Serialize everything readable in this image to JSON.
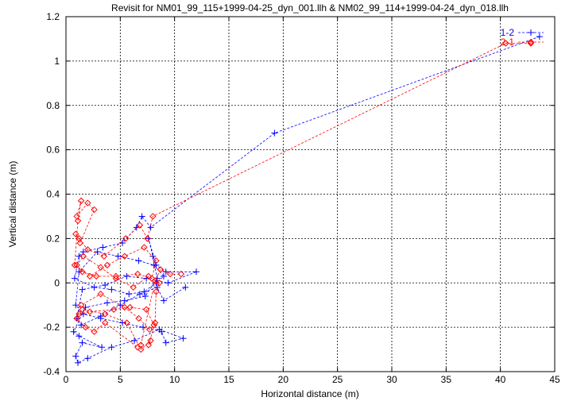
{
  "chart_data": {
    "type": "scatter",
    "title": "Revisit for NM01_99_115+1999-04-25_dyn_001.llh & NM02_99_114+1999-04-24_dyn_018.llh",
    "xlabel": "Horizontal distance (m)",
    "ylabel": "Vertical distance (m)",
    "xlim": [
      0,
      45
    ],
    "ylim": [
      -0.4,
      1.2
    ],
    "xticks": [
      0,
      5,
      10,
      15,
      20,
      25,
      30,
      35,
      40,
      45
    ],
    "yticks": [
      -0.4,
      -0.2,
      0,
      0.2,
      0.4,
      0.6,
      0.8,
      1,
      1.2
    ],
    "xtick_labels": [
      "0",
      "5",
      "10",
      "15",
      "20",
      "25",
      "30",
      "35",
      "40",
      "45"
    ],
    "ytick_labels": [
      "-0.4",
      "-0.2",
      "0",
      "0.2",
      "0.4",
      "0.6",
      "0.8",
      "1",
      "1.2"
    ],
    "grid": true,
    "legend_position": "top-right",
    "series": [
      {
        "name": "1-2",
        "color": "#0000ff",
        "marker": "plus",
        "line": "dashed",
        "x": [
          43.6,
          19.2,
          7.8,
          7.0,
          6.5,
          5.2,
          3.4,
          1.6,
          1.2,
          0.8,
          2.6,
          4.2,
          5.8,
          7.2,
          8.3,
          9.0,
          8.1,
          6.7,
          4.8,
          2.9,
          1.2,
          0.9,
          1.6,
          3.2,
          5.2,
          7.1,
          8.8,
          9.2,
          10.8,
          8.6,
          6.3,
          4.2,
          2.0,
          1.1,
          0.9,
          1.5,
          3.3,
          1.2,
          0.7,
          1.8,
          3.8,
          5.4,
          7.3,
          8.4,
          8.0,
          7.6,
          8.3,
          9.2,
          12.0,
          9.4,
          7.4,
          5.6,
          3.6,
          1.5,
          1.0,
          1.4,
          3.2,
          5.0,
          6.8,
          8.4,
          9.0,
          11.0
        ],
        "y": [
          1.11,
          0.675,
          0.25,
          0.3,
          0.25,
          0.18,
          0.16,
          0.14,
          0.12,
          0.02,
          -0.02,
          -0.03,
          -0.05,
          -0.04,
          0.0,
          0.03,
          0.08,
          0.1,
          0.12,
          0.14,
          0.05,
          -0.1,
          -0.14,
          -0.16,
          -0.18,
          -0.2,
          -0.22,
          -0.27,
          -0.25,
          -0.21,
          -0.26,
          -0.29,
          -0.34,
          -0.36,
          -0.33,
          -0.27,
          -0.29,
          -0.24,
          -0.22,
          -0.11,
          -0.09,
          -0.08,
          -0.06,
          0.02,
          0.12,
          0.2,
          0.08,
          0.05,
          0.05,
          0.0,
          0.02,
          0.03,
          -0.01,
          -0.03,
          -0.16,
          -0.19,
          -0.15,
          -0.1,
          -0.05,
          -0.02,
          -0.08,
          -0.02
        ]
      },
      {
        "name": "2-1",
        "color": "#ff0000",
        "marker": "diamond",
        "line": "dashed",
        "x": [
          42.8,
          40.5,
          8.0,
          7.5,
          6.8,
          5.5,
          3.5,
          2.0,
          1.2,
          0.9,
          1.3,
          2.6,
          2.0,
          1.0,
          1.4,
          1.1,
          0.8,
          2.2,
          3.8,
          5.4,
          7.2,
          8.3,
          7.9,
          6.6,
          4.6,
          2.8,
          1.5,
          1.0,
          1.6,
          3.2,
          4.6,
          6.2,
          7.6,
          8.6,
          8.3,
          8.2,
          7.6,
          7.8,
          6.9,
          5.6,
          3.6,
          1.5,
          1.2,
          2.2,
          4.4,
          5.9,
          7.4,
          8.1,
          7.7,
          6.7,
          5.4,
          3.2,
          1.4,
          1.0,
          1.8,
          2.6,
          3.6,
          6.6,
          6.9,
          8.2,
          8.7,
          9.6,
          10.6
        ],
        "y": [
          1.08,
          1.08,
          0.3,
          0.2,
          0.26,
          0.2,
          0.12,
          0.15,
          0.2,
          0.22,
          0.18,
          0.33,
          0.36,
          0.3,
          0.37,
          0.28,
          0.08,
          0.03,
          0.08,
          0.12,
          0.16,
          0.1,
          0.02,
          0.04,
          0.03,
          0.03,
          0.05,
          0.08,
          0.12,
          0.07,
          0.02,
          -0.02,
          0.03,
          0.0,
          -0.04,
          -0.18,
          -0.28,
          -0.26,
          -0.3,
          -0.18,
          -0.14,
          -0.12,
          -0.14,
          -0.13,
          -0.12,
          -0.11,
          -0.12,
          -0.19,
          -0.21,
          -0.16,
          -0.11,
          -0.05,
          -0.1,
          -0.16,
          -0.2,
          -0.22,
          -0.18,
          -0.29,
          -0.28,
          0.01,
          0.06,
          0.04,
          0.04
        ]
      }
    ]
  }
}
